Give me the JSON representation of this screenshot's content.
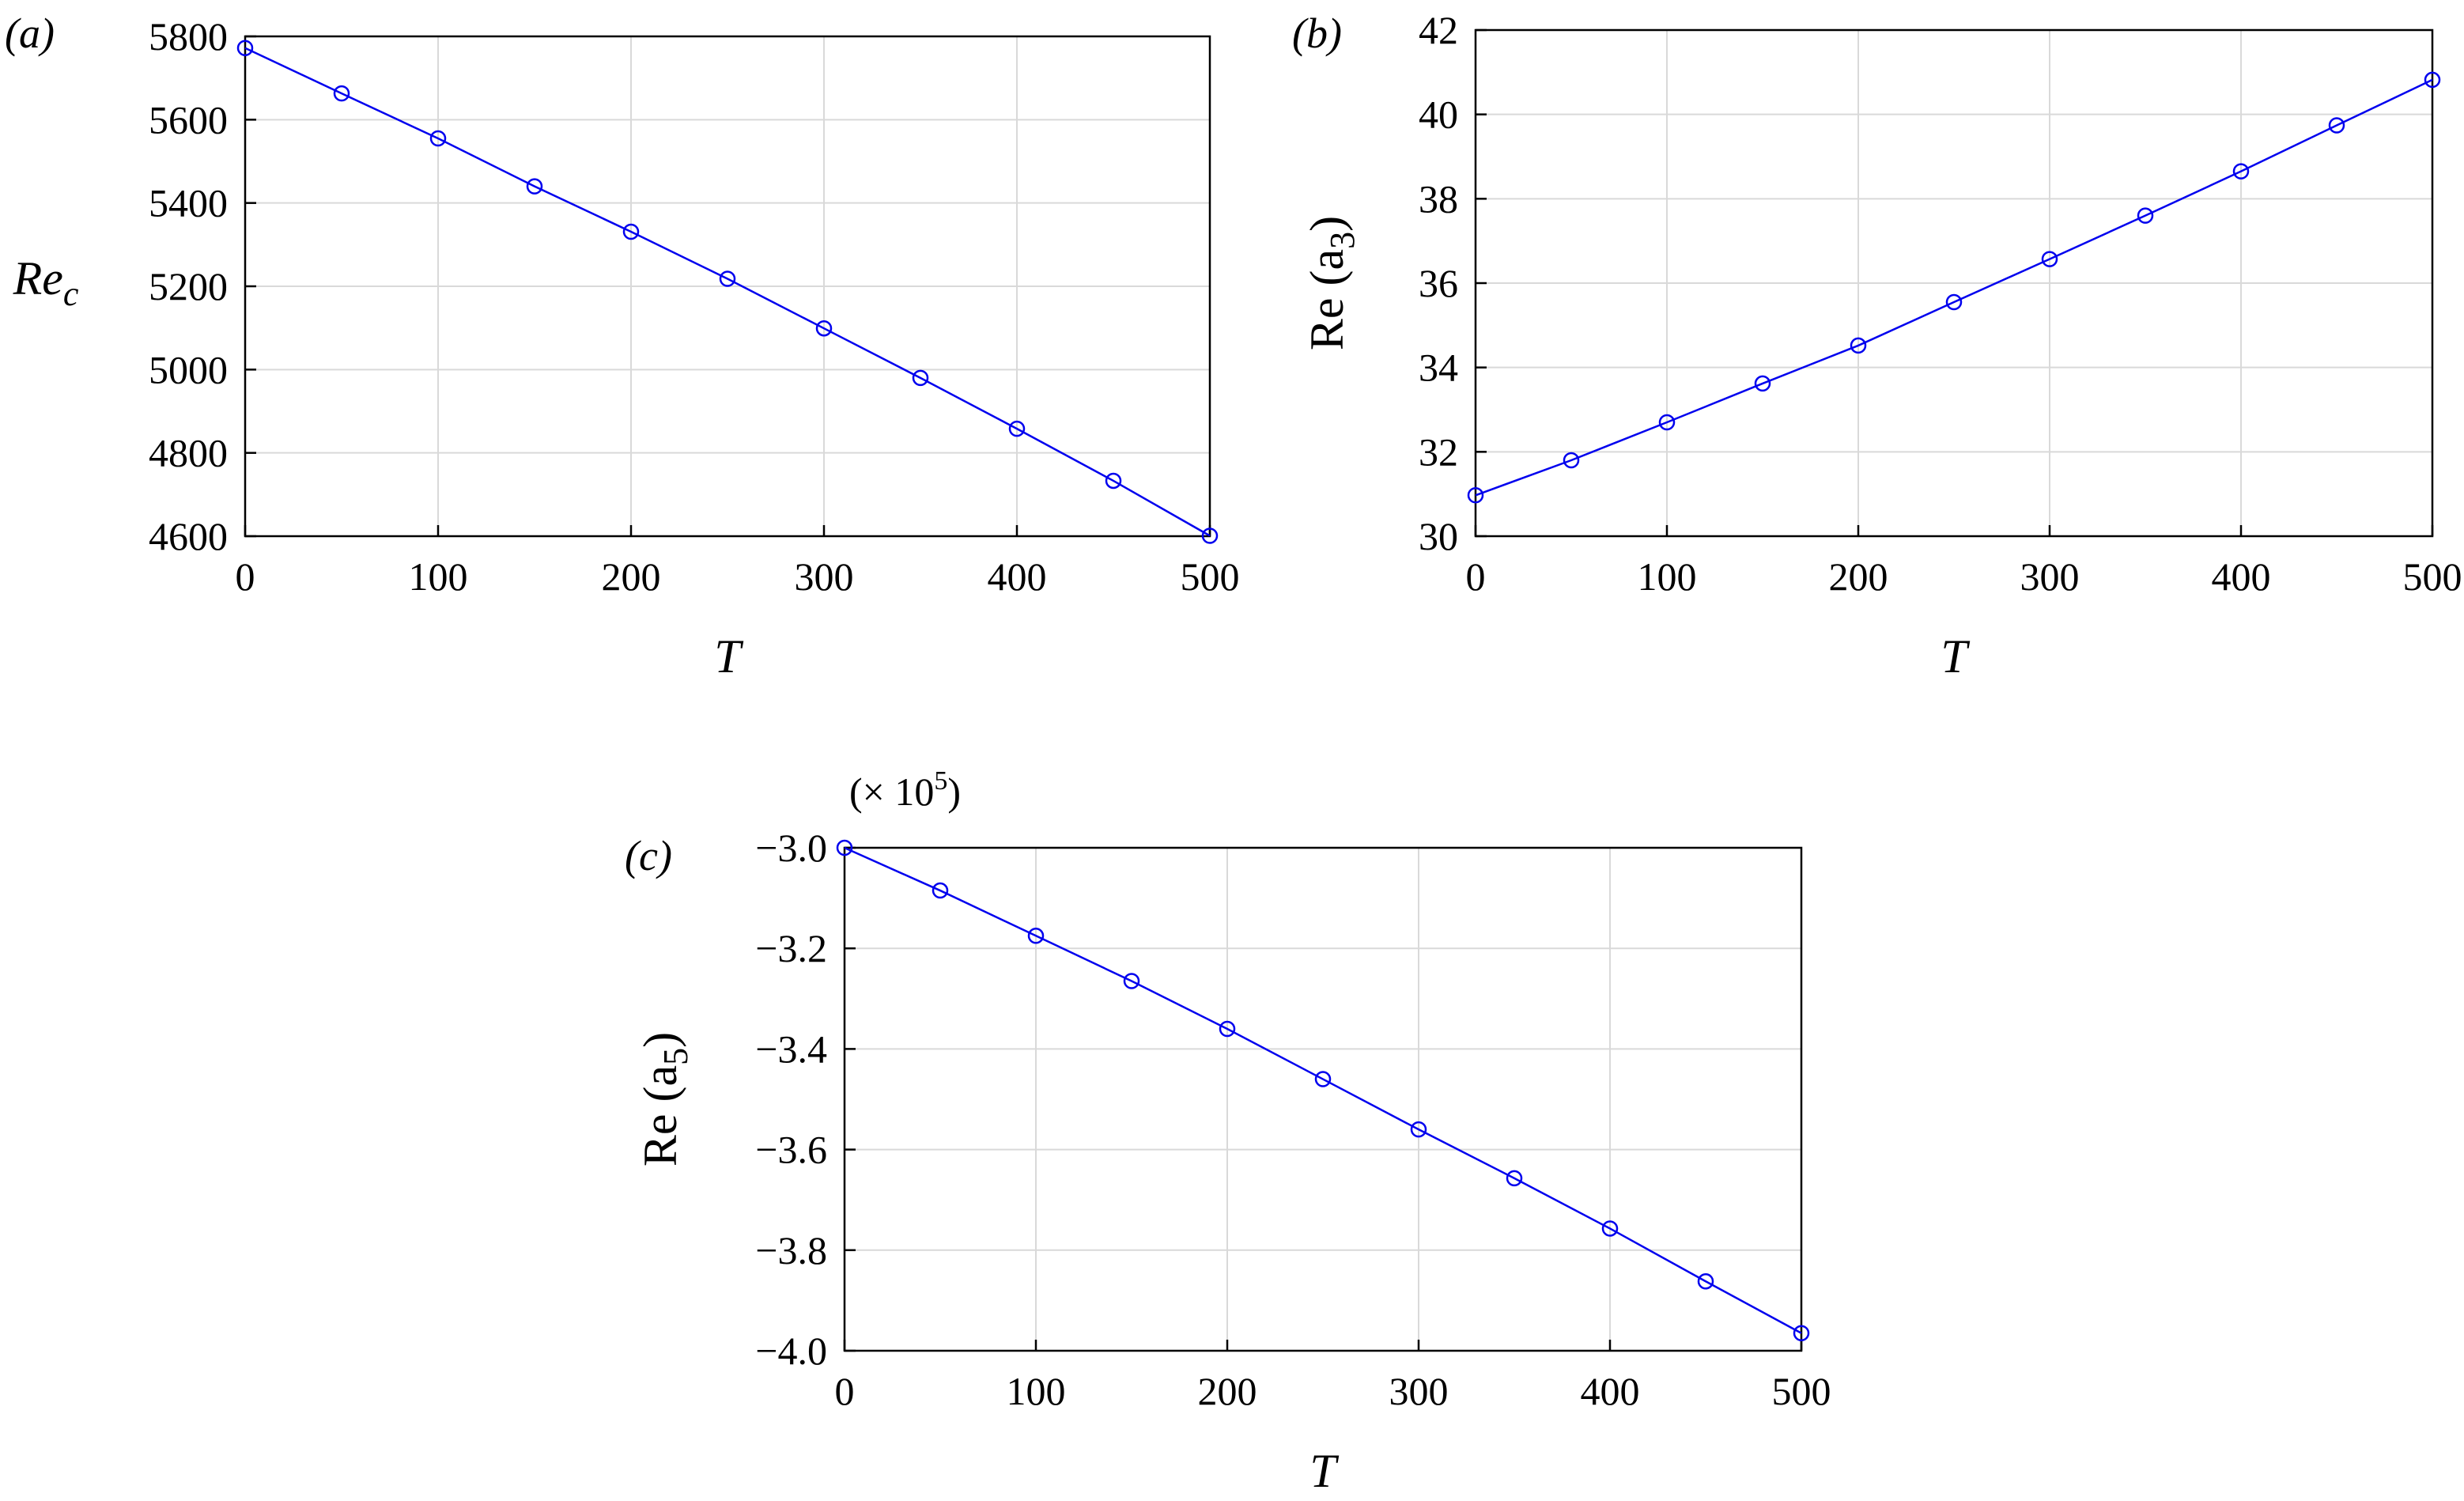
{
  "figure": {
    "panels": [
      {
        "id": "a",
        "label": "(a)"
      },
      {
        "id": "b",
        "label": "(b)"
      },
      {
        "id": "c",
        "label": "(c)"
      }
    ]
  },
  "chart_data": [
    {
      "type": "line",
      "panel": "(a)",
      "xlabel": "T",
      "ylabel_main": "Re",
      "ylabel_sub": "c",
      "xlim": [
        0,
        500
      ],
      "ylim": [
        4600,
        5800
      ],
      "xticks": [
        0,
        100,
        200,
        300,
        400,
        500
      ],
      "yticks": [
        4600,
        4800,
        5000,
        5200,
        5400,
        5600,
        5800
      ],
      "grid": true,
      "marker": "circle-open",
      "color": "#0000ee",
      "series": [
        {
          "x": [
            0,
            50,
            100,
            150,
            200,
            250,
            300,
            350,
            400,
            450,
            500
          ],
          "y": [
            5772,
            5663,
            5555,
            5440,
            5331,
            5218,
            5099,
            4980,
            4858,
            4733,
            4601
          ]
        }
      ]
    },
    {
      "type": "line",
      "panel": "(b)",
      "xlabel": "T",
      "ylabel_main": "Re (a",
      "ylabel_sub": "3",
      "ylabel_end": ")",
      "xlim": [
        0,
        500
      ],
      "ylim": [
        30,
        42
      ],
      "xticks": [
        0,
        100,
        200,
        300,
        400,
        500
      ],
      "yticks": [
        30,
        32,
        34,
        36,
        38,
        40,
        42
      ],
      "grid": true,
      "marker": "circle-open",
      "color": "#0000ee",
      "series": [
        {
          "x": [
            0,
            50,
            100,
            150,
            200,
            250,
            300,
            350,
            400,
            450,
            500
          ],
          "y": [
            30.97,
            31.8,
            32.7,
            33.62,
            34.52,
            35.55,
            36.57,
            37.6,
            38.65,
            39.74,
            40.82
          ]
        }
      ]
    },
    {
      "type": "line",
      "panel": "(c)",
      "xlabel": "T",
      "ylabel_main": "Re (a",
      "ylabel_sub": "5",
      "ylabel_end": ")",
      "multiplier": "(× 10",
      "multiplier_exp": "5",
      "multiplier_end": ")",
      "xlim": [
        0,
        500
      ],
      "ylim": [
        -4.0,
        -3.0
      ],
      "xticks": [
        0,
        100,
        200,
        300,
        400,
        500
      ],
      "yticks": [
        -4.0,
        -3.8,
        -3.6,
        -3.4,
        -3.2,
        -3.0
      ],
      "ytick_labels": [
        "−4.0",
        "−3.8",
        "−3.6",
        "−3.4",
        "−3.2",
        "−3.0"
      ],
      "grid": true,
      "marker": "circle-open",
      "color": "#0000ee",
      "series": [
        {
          "x": [
            0,
            50,
            100,
            150,
            200,
            250,
            300,
            350,
            400,
            450,
            500
          ],
          "y": [
            -3.0,
            -3.085,
            -3.175,
            -3.265,
            -3.36,
            -3.46,
            -3.56,
            -3.657,
            -3.757,
            -3.862,
            -3.965
          ]
        }
      ]
    }
  ]
}
